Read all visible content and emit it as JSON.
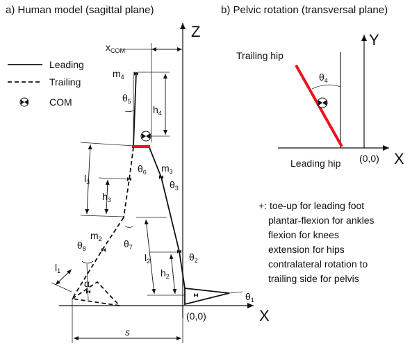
{
  "panel_a": {
    "title": "a) Human model (sagittal plane)",
    "axis_z": "Z",
    "axis_x": "X",
    "origin": "(0,0)",
    "x_com": "x",
    "x_com_sub": "COM",
    "s": "s",
    "m4": "m",
    "m4_sub": "4",
    "m3": "m",
    "m3_sub": "3",
    "m2": "m",
    "m2_sub": "2",
    "h4": "h",
    "h4_sub": "4",
    "h3": "h",
    "h3_sub": "3",
    "h2": "h",
    "h2_sub": "2",
    "l3": "l",
    "l3_sub": "3",
    "l2": "l",
    "l2_sub": "2",
    "l1": "l",
    "l1_sub": "1",
    "theta1": "θ",
    "theta1_sub": "1",
    "theta2": "θ",
    "theta2_sub": "2",
    "theta3": "θ",
    "theta3_sub": "3",
    "theta5": "θ",
    "theta5_sub": "5",
    "theta6": "θ",
    "theta6_sub": "6",
    "theta7": "θ",
    "theta7_sub": "7",
    "theta8": "θ",
    "theta8_sub": "8",
    "alpha": "α"
  },
  "legend": {
    "leading": "Leading",
    "trailing": "Trailing",
    "com": "COM"
  },
  "panel_b": {
    "title": "b) Pelvic rotation (transversal plane)",
    "axis_y": "Y",
    "axis_x": "X",
    "origin": "(0,0)",
    "trailing_hip": "Trailing hip",
    "leading_hip": "Leading hip",
    "theta4": "θ",
    "theta4_sub": "4"
  },
  "notes": [
    "+: toe-up for leading foot",
    "plantar-flexion for ankles",
    "flexion for knees",
    "extension for hips",
    "contralateral rotation to",
    "trailing side for pelvis"
  ],
  "colors": {
    "pelvis": "#e8141c",
    "ink": "#111111"
  }
}
